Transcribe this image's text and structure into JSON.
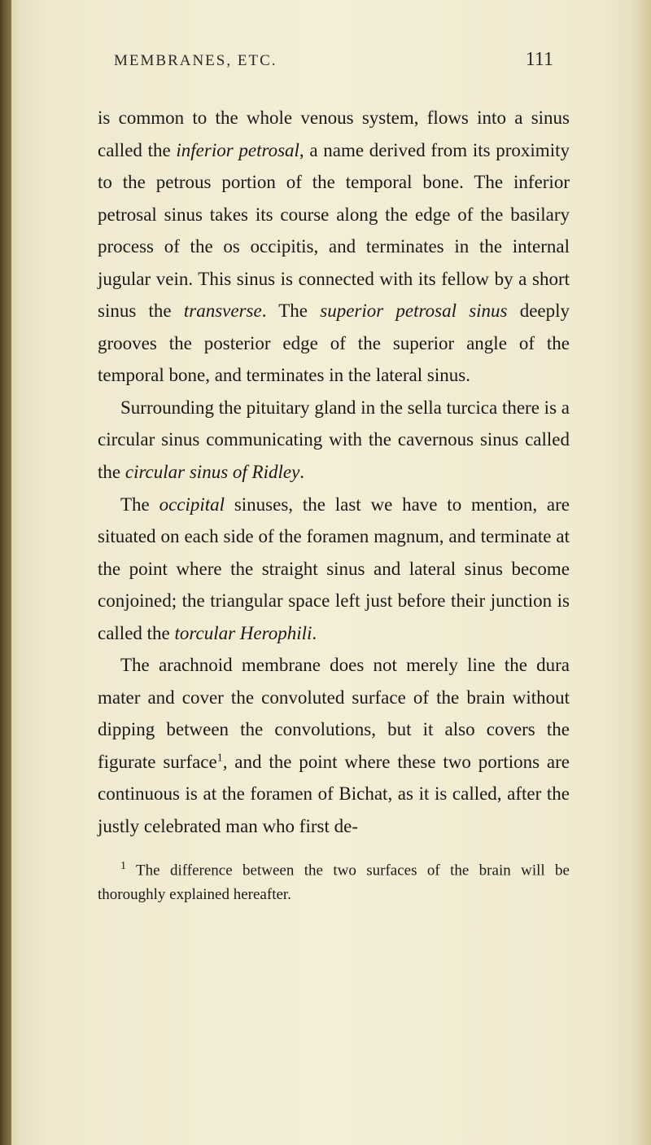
{
  "page": {
    "header_title": "MEMBRANES, ETC.",
    "page_number": "111"
  },
  "paragraphs": {
    "p1_part1": "is common to the whole venous system, flows into a sinus called the ",
    "p1_italic1": "inferior petrosal",
    "p1_part2": ", a name derived from its proximity to the petrous portion of the temporal bone. The inferior petrosal sinus takes its course along the edge of the basilary process of the os occipitis, and terminates in the internal jugular vein. This sinus is connected with its fellow by a short sinus the ",
    "p1_italic2": "transverse",
    "p1_part3": ". The ",
    "p1_italic3": "superior petrosal sinus",
    "p1_part4": " deeply grooves the posterior edge of the superior angle of the temporal bone, and terminates in the lateral sinus.",
    "p2_part1": "Surrounding the pituitary gland in the sella turcica there is a circular sinus communicating with the cavernous sinus called the ",
    "p2_italic1": "circular sinus of Ridley",
    "p2_part2": ".",
    "p3_part1": "The ",
    "p3_italic1": "occipital",
    "p3_part2": " sinuses, the last we have to mention, are situated on each side of the foramen magnum, and terminate at the point where the straight sinus and lateral sinus become conjoined; the triangular space left just before their junction is called the ",
    "p3_italic2": "torcular Herophili",
    "p3_part3": ".",
    "p4_part1": "The arachnoid membrane does not merely line the dura mater and cover the convoluted surface of the brain without dipping between the convolutions, but it also covers the figurate surface",
    "p4_sup": "1",
    "p4_part2": ", and the point where these two portions are continuous is at the foramen of Bichat, as it is called, after the justly celebrated man who first de-"
  },
  "footnote": {
    "marker": "1",
    "text": " The difference between the two surfaces of the brain will be thoroughly explained hereafter."
  },
  "colors": {
    "background": "#f4eed6",
    "text": "#1a1a18",
    "edge": "#4a3c20"
  },
  "typography": {
    "body_fontsize": 23,
    "header_fontsize": 19,
    "pagenum_fontsize": 24,
    "footnote_fontsize": 19,
    "line_height": 1.72,
    "font_family": "Georgia, Times New Roman, serif"
  }
}
